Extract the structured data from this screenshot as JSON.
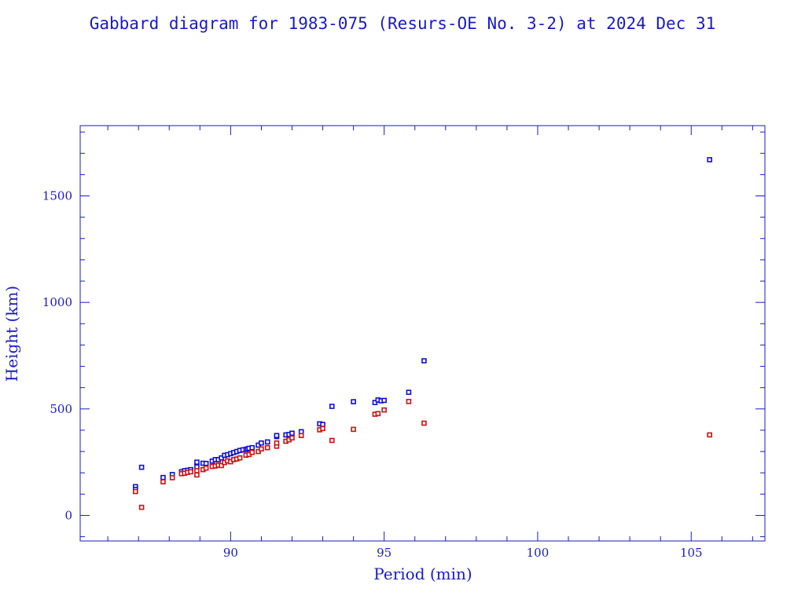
{
  "chart_data": {
    "type": "scatter",
    "title": "Gabbard diagram for 1983-075 (Resurs-OE No. 3-2) at 2024 Dec 31",
    "xlabel": "Period (min)",
    "ylabel": "Height (km)",
    "xlim": [
      85.1,
      107.4
    ],
    "ylim": [
      -120,
      1830
    ],
    "x_ticks": [
      90,
      95,
      100,
      105
    ],
    "y_ticks": [
      0,
      500,
      1000,
      1500
    ],
    "x_tick_labels": [
      "90",
      "95",
      "100",
      "105"
    ],
    "y_tick_labels": [
      "0",
      "500",
      "1000",
      "1500"
    ],
    "grid": false,
    "legend": "none",
    "series": [
      {
        "color": "#1010d0",
        "x": [
          86.9,
          86.9,
          87.1,
          87.8,
          88.1,
          88.4,
          88.5,
          88.6,
          88.7,
          88.9,
          88.9,
          89.1,
          89.2,
          89.4,
          89.5,
          89.6,
          89.7,
          89.8,
          89.9,
          90.0,
          90.1,
          90.2,
          90.3,
          90.4,
          90.5,
          90.55,
          90.6,
          90.7,
          90.9,
          91.0,
          91.2,
          91.5,
          91.5,
          91.8,
          91.9,
          92.0,
          92.3,
          92.9,
          93.0,
          93.3,
          94.0,
          94.7,
          94.8,
          94.9,
          95.0,
          95.8,
          96.3,
          105.6
        ],
        "y": [
          135,
          122,
          226,
          178,
          192,
          205,
          210,
          212,
          215,
          228,
          250,
          245,
          244,
          255,
          262,
          262,
          270,
          282,
          285,
          290,
          295,
          300,
          305,
          308,
          310,
          312,
          315,
          318,
          330,
          340,
          345,
          370,
          375,
          378,
          380,
          386,
          393,
          430,
          427,
          512,
          534,
          530,
          542,
          538,
          540,
          578,
          726,
          1670
        ]
      },
      {
        "color": "#d01010",
        "x": [
          86.9,
          87.1,
          87.8,
          88.1,
          88.4,
          88.5,
          88.6,
          88.7,
          88.9,
          88.9,
          89.1,
          89.2,
          89.4,
          89.5,
          89.6,
          89.7,
          89.8,
          89.9,
          90.0,
          90.1,
          90.2,
          90.3,
          90.5,
          90.6,
          90.7,
          90.9,
          91.0,
          91.2,
          91.5,
          91.5,
          91.8,
          91.9,
          92.0,
          92.3,
          92.9,
          93.0,
          93.3,
          94.0,
          94.7,
          94.8,
          95.0,
          95.8,
          96.3,
          105.6
        ],
        "y": [
          112,
          38,
          158,
          177,
          196,
          198,
          202,
          205,
          210,
          190,
          215,
          222,
          230,
          232,
          236,
          234,
          248,
          256,
          252,
          262,
          265,
          270,
          283,
          286,
          296,
          300,
          312,
          318,
          325,
          340,
          348,
          355,
          364,
          375,
          402,
          408,
          352,
          404,
          475,
          478,
          495,
          535,
          433,
          378
        ]
      }
    ]
  }
}
